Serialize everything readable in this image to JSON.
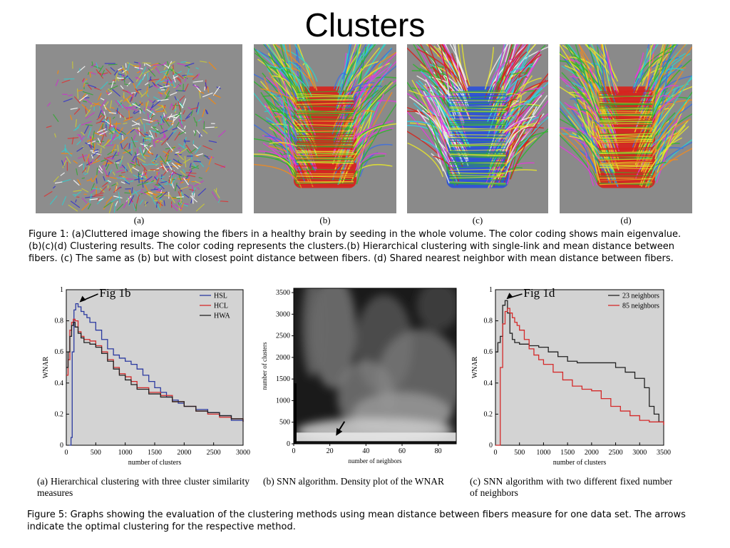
{
  "page": {
    "title": "Clusters"
  },
  "figure1": {
    "panel_labels": [
      "(a)",
      "(b)",
      "(c)",
      "(d)"
    ],
    "caption_lines": [
      "Figure 1: (a)Cluttered image showing the fibers in a healthy brain by seeding in the whole volume. The color coding shows main eigenvalue.",
      "(b)(c)(d) Clustering results. The color coding represents the clusters.(b) Hierarchical clustering with single-link and mean distance between",
      "fibers. (c) The same as (b) but with closest point distance between fibers. (d) Shared nearest neighbor with mean distance between fibers."
    ]
  },
  "figure5": {
    "subcaptions": [
      "(a) Hierarchical clustering with three cluster similarity measures",
      "(b) SNN algorithm. Density plot of the WNAR",
      "(c) SNN algorithm with two different fixed number of neighbors"
    ],
    "caption_lines": [
      "Figure 5: Graphs showing the evaluation of the clustering methods using mean distance between fibers measure for one data set. The arrows",
      "indicate the optimal clustering for the respective method."
    ]
  },
  "colors": {
    "HSL": "#2b3aa0",
    "HCL": "#d42a2a",
    "HWA": "#222222",
    "n23": "#222222",
    "n85": "#d42a2a",
    "plot_bg": "#d3d3d3"
  },
  "chart_data": [
    {
      "type": "line",
      "xlabel": "number of clusters",
      "ylabel": "WNAR",
      "xlim": [
        0,
        3000
      ],
      "ylim": [
        0,
        1
      ],
      "xticks": [
        0,
        500,
        1000,
        1500,
        2000,
        2500,
        3000
      ],
      "yticks": [
        0,
        0.2,
        0.4,
        0.6,
        0.8,
        1
      ],
      "legend_position": "top-right",
      "annotation": "Fig 1b",
      "series": [
        {
          "name": "HSL",
          "x": [
            50,
            80,
            100,
            130,
            160,
            200,
            250,
            300,
            350,
            400,
            500,
            600,
            700,
            800,
            900,
            1000,
            1100,
            1200,
            1300,
            1400,
            1500,
            1600,
            1700,
            1800,
            1900,
            2000,
            2200,
            2400,
            2600,
            2800,
            3000
          ],
          "y": [
            0,
            0.05,
            0.6,
            0.87,
            0.91,
            0.89,
            0.86,
            0.84,
            0.82,
            0.79,
            0.74,
            0.68,
            0.62,
            0.58,
            0.56,
            0.54,
            0.52,
            0.49,
            0.45,
            0.41,
            0.37,
            0.34,
            0.31,
            0.29,
            0.27,
            0.25,
            0.23,
            0.21,
            0.19,
            0.16,
            0.15
          ]
        },
        {
          "name": "HCL",
          "x": [
            0,
            30,
            60,
            90,
            120,
            150,
            200,
            250,
            300,
            400,
            500,
            600,
            700,
            800,
            900,
            1000,
            1100,
            1200,
            1400,
            1600,
            1800,
            2000,
            2200,
            2400,
            2600,
            2800,
            3000
          ],
          "y": [
            0.45,
            0.55,
            0.74,
            0.79,
            0.81,
            0.8,
            0.73,
            0.7,
            0.68,
            0.67,
            0.64,
            0.6,
            0.55,
            0.5,
            0.46,
            0.44,
            0.41,
            0.37,
            0.34,
            0.32,
            0.28,
            0.25,
            0.22,
            0.2,
            0.18,
            0.17,
            0.15
          ]
        },
        {
          "name": "HWA",
          "x": [
            0,
            30,
            60,
            90,
            120,
            150,
            200,
            250,
            300,
            400,
            500,
            600,
            700,
            800,
            900,
            1000,
            1100,
            1200,
            1400,
            1600,
            1800,
            2000,
            2200,
            2400,
            2600,
            2800,
            3000
          ],
          "y": [
            0.5,
            0.6,
            0.7,
            0.77,
            0.79,
            0.76,
            0.72,
            0.69,
            0.66,
            0.65,
            0.63,
            0.59,
            0.54,
            0.49,
            0.45,
            0.42,
            0.39,
            0.36,
            0.33,
            0.31,
            0.28,
            0.25,
            0.22,
            0.21,
            0.19,
            0.17,
            0.15
          ]
        }
      ]
    },
    {
      "type": "heatmap",
      "xlabel": "number of neighbors",
      "ylabel": "number of clusters",
      "xlim": [
        0,
        90
      ],
      "ylim": [
        0,
        3600
      ],
      "xticks": [
        0,
        20,
        40,
        60,
        80
      ],
      "yticks": [
        0,
        500,
        1000,
        1500,
        2000,
        2500,
        3000,
        3500
      ],
      "arrow_target": [
        23,
        120
      ]
    },
    {
      "type": "line",
      "xlabel": "number of clusters",
      "ylabel": "WNAR",
      "xlim": [
        0,
        3500
      ],
      "ylim": [
        0,
        1
      ],
      "xticks": [
        0,
        500,
        1000,
        1500,
        2000,
        2500,
        3000,
        3500
      ],
      "yticks": [
        0,
        0.2,
        0.4,
        0.6,
        0.8,
        1
      ],
      "legend_position": "top-right",
      "annotation": "Fig 1d",
      "series": [
        {
          "name": "23 neighbors",
          "x": [
            0,
            50,
            100,
            150,
            200,
            250,
            300,
            350,
            400,
            500,
            700,
            900,
            1100,
            1300,
            1500,
            1700,
            1900,
            2100,
            2300,
            2500,
            2700,
            2900,
            3100,
            3200,
            3300,
            3400,
            3500
          ],
          "y": [
            0.6,
            0.66,
            0.7,
            0.9,
            0.93,
            0.85,
            0.72,
            0.68,
            0.66,
            0.65,
            0.64,
            0.63,
            0.6,
            0.57,
            0.54,
            0.53,
            0.53,
            0.53,
            0.53,
            0.5,
            0.47,
            0.43,
            0.37,
            0.25,
            0.2,
            0.15,
            0.13
          ]
        },
        {
          "name": "85 neighbors",
          "x": [
            0,
            100,
            150,
            200,
            250,
            300,
            350,
            400,
            450,
            500,
            600,
            700,
            800,
            900,
            1000,
            1200,
            1400,
            1600,
            1800,
            2000,
            2200,
            2400,
            2600,
            2800,
            3000,
            3200,
            3500
          ],
          "y": [
            0,
            0.5,
            0.78,
            0.86,
            0.88,
            0.85,
            0.82,
            0.79,
            0.77,
            0.74,
            0.68,
            0.62,
            0.58,
            0.55,
            0.52,
            0.47,
            0.42,
            0.38,
            0.36,
            0.35,
            0.3,
            0.25,
            0.22,
            0.19,
            0.16,
            0.15,
            0.13
          ]
        }
      ]
    }
  ]
}
